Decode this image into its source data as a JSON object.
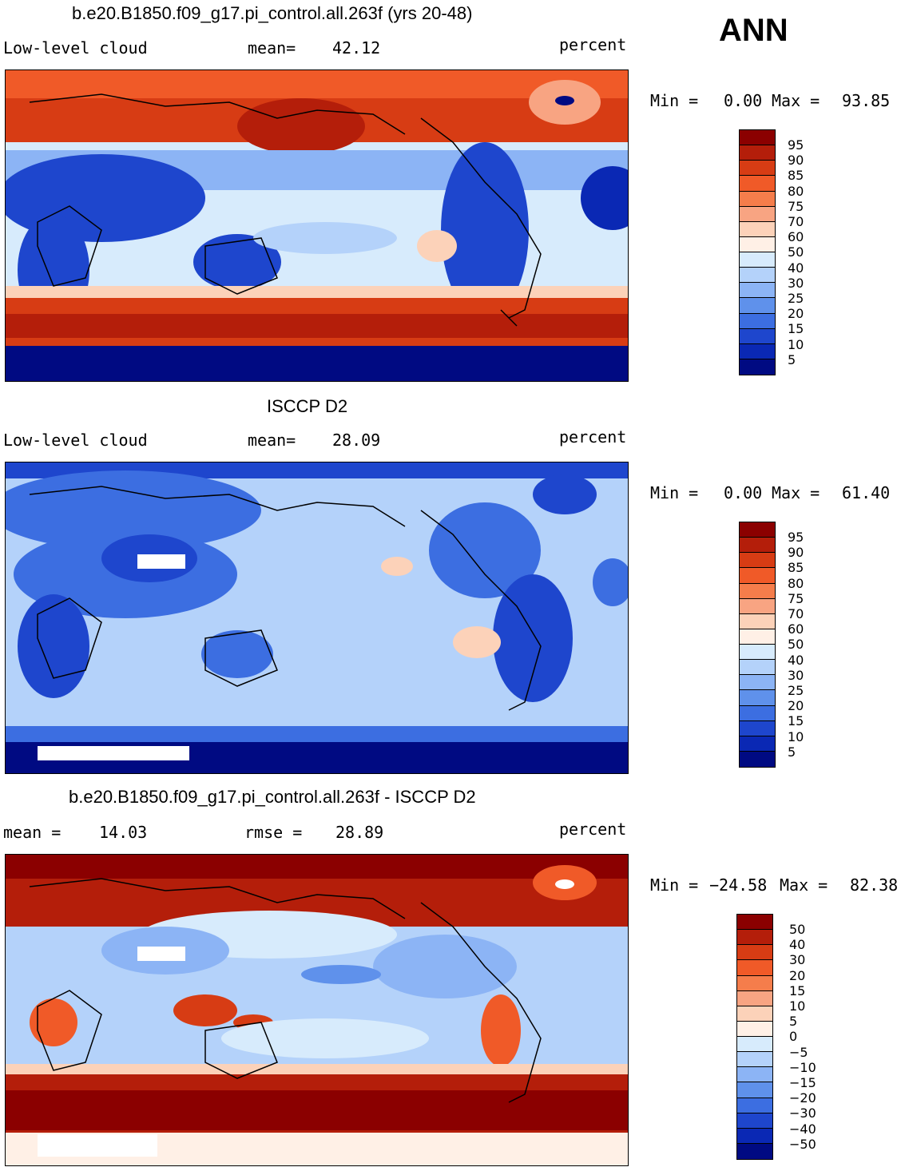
{
  "header": {
    "season": "ANN"
  },
  "panels": [
    {
      "title": "b.e20.B1850.f09_g17.pi_control.all.263f (yrs 20-48)",
      "variable": "Low-level cloud",
      "stat_label": "mean=",
      "stat_value": "42.12",
      "units": "percent",
      "min_label": "Min =",
      "min_value": "0.00",
      "max_label": "Max =",
      "max_value": "93.85",
      "colorbar_ticks": [
        "95",
        "90",
        "85",
        "80",
        "75",
        "70",
        "60",
        "50",
        "40",
        "30",
        "25",
        "20",
        "15",
        "10",
        "5"
      ]
    },
    {
      "title": "ISCCP D2",
      "variable": "Low-level cloud",
      "stat_label": "mean=",
      "stat_value": "28.09",
      "units": "percent",
      "min_label": "Min =",
      "min_value": "0.00",
      "max_label": "Max =",
      "max_value": "61.40",
      "colorbar_ticks": [
        "95",
        "90",
        "85",
        "80",
        "75",
        "70",
        "60",
        "50",
        "40",
        "30",
        "25",
        "20",
        "15",
        "10",
        "5"
      ]
    },
    {
      "title": "b.e20.B1850.f09_g17.pi_control.all.263f - ISCCP D2",
      "variable": "mean =",
      "stat_label": "rmse =",
      "mean_value": "14.03",
      "stat_value": "28.89",
      "units": "percent",
      "min_label": "Min =",
      "min_value": "−24.58",
      "max_label": "Max =",
      "max_value": "82.38",
      "colorbar_ticks": [
        "50",
        "40",
        "30",
        "20",
        "15",
        "10",
        "5",
        "0",
        "−5",
        "−10",
        "−15",
        "−20",
        "−30",
        "−40",
        "−50"
      ]
    }
  ],
  "colors": {
    "scale": [
      "#8b0000",
      "#b41e0a",
      "#d73c14",
      "#f05a28",
      "#f57d4b",
      "#f8a482",
      "#fcd2b9",
      "#fff0e6",
      "#d7ebfc",
      "#b4d2fa",
      "#8cb4f5",
      "#5f91eb",
      "#3c6ee1",
      "#1e46cd",
      "#0a28b4",
      "#000a82"
    ]
  }
}
